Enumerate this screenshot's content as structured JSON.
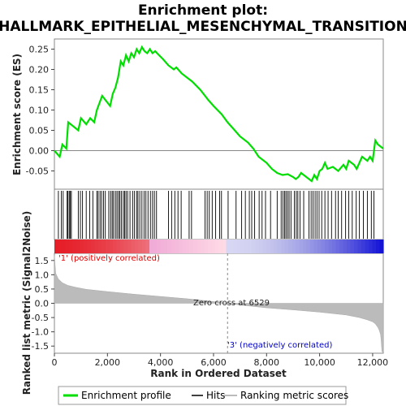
{
  "chart_data": {
    "type": "line",
    "title_line1": "Enrichment plot:",
    "title_line2": "HALLMARK_EPITHELIAL_MESENCHYMAL_TRANSITION",
    "es_ylabel": "Enrichment score (ES)",
    "metric_ylabel": "Ranked list metric (Signal2Noise)",
    "xlabel": "Rank in Ordered Dataset",
    "x_range": [
      0,
      12400
    ],
    "x_ticks": [
      0,
      2000,
      4000,
      6000,
      8000,
      10000,
      12000
    ],
    "x_tick_labels": [
      "0",
      "2,000",
      "4,000",
      "6,000",
      "8,000",
      "10,000",
      "12,000"
    ],
    "es_ylim": [
      -0.095,
      0.275
    ],
    "es_ticks": [
      -0.05,
      0.0,
      0.05,
      0.1,
      0.15,
      0.2,
      0.25
    ],
    "es_tick_labels": [
      "-0.05",
      "0.00",
      "0.05",
      "0.10",
      "0.15",
      "0.20",
      "0.25"
    ],
    "metric_ylim": [
      -1.75,
      1.75
    ],
    "metric_ticks": [
      -1.5,
      -1.0,
      -0.5,
      0.0,
      0.5,
      1.0,
      1.5
    ],
    "metric_tick_labels": [
      "-1.5",
      "-1.0",
      "-0.5",
      "0.0",
      "0.5",
      "1.0",
      "1.5"
    ],
    "colors": {
      "enrichment": "#00dd00",
      "hits": "#000000",
      "metric": "#bbbbbb",
      "positive_label": "#dd0000",
      "negative_label": "#0000cc",
      "zero_cross": "#888888"
    },
    "enrichment_profile": {
      "x": [
        0,
        200,
        300,
        450,
        520,
        900,
        1000,
        1200,
        1350,
        1500,
        1600,
        1800,
        2100,
        2200,
        2300,
        2400,
        2500,
        2600,
        2700,
        2800,
        2900,
        3000,
        3100,
        3200,
        3300,
        3400,
        3500,
        3600,
        3700,
        3800,
        3900,
        4100,
        4300,
        4500,
        4600,
        4800,
        5000,
        5200,
        5500,
        5800,
        6000,
        6300,
        6529,
        6800,
        7000,
        7300,
        7500,
        7700,
        8000,
        8200,
        8400,
        8600,
        8800,
        9000,
        9100,
        9200,
        9300,
        9500,
        9700,
        9800,
        9900,
        10000,
        10100,
        10200,
        10300,
        10500,
        10700,
        10900,
        11000,
        11100,
        11300,
        11400,
        11500,
        11600,
        11800,
        11900,
        12000,
        12100,
        12200,
        12400
      ],
      "y": [
        0.0,
        -0.015,
        0.015,
        0.005,
        0.07,
        0.05,
        0.08,
        0.065,
        0.08,
        0.07,
        0.1,
        0.135,
        0.11,
        0.14,
        0.155,
        0.18,
        0.22,
        0.21,
        0.235,
        0.22,
        0.24,
        0.23,
        0.25,
        0.24,
        0.255,
        0.245,
        0.24,
        0.25,
        0.24,
        0.245,
        0.238,
        0.225,
        0.21,
        0.2,
        0.205,
        0.19,
        0.18,
        0.17,
        0.15,
        0.125,
        0.11,
        0.09,
        0.07,
        0.05,
        0.035,
        0.02,
        0.005,
        -0.015,
        -0.03,
        -0.045,
        -0.055,
        -0.06,
        -0.058,
        -0.065,
        -0.07,
        -0.065,
        -0.055,
        -0.065,
        -0.075,
        -0.06,
        -0.07,
        -0.05,
        -0.045,
        -0.03,
        -0.045,
        -0.04,
        -0.05,
        -0.035,
        -0.045,
        -0.025,
        -0.035,
        -0.045,
        -0.03,
        -0.015,
        -0.025,
        -0.015,
        -0.025,
        0.025,
        0.015,
        0.005
      ],
      "name": "Enrichment profile"
    },
    "hits_x": [
      150,
      260,
      330,
      480,
      510,
      560,
      600,
      640,
      900,
      980,
      1060,
      1200,
      1330,
      1450,
      1600,
      1650,
      1720,
      1780,
      1850,
      1920,
      2050,
      2120,
      2180,
      2230,
      2300,
      2360,
      2420,
      2470,
      2530,
      2600,
      2650,
      2700,
      2760,
      2850,
      2950,
      3020,
      3100,
      3150,
      3220,
      3300,
      3380,
      3450,
      3530,
      3620,
      3700,
      3770,
      3850,
      4300,
      4420,
      4540,
      4660,
      4780,
      5080,
      5170,
      5680,
      5760,
      5840,
      5950,
      6080,
      6230,
      6300,
      6550,
      6850,
      7060,
      7200,
      7350,
      7440,
      7550,
      7720,
      7830,
      7960,
      8150,
      8400,
      8550,
      8620,
      8680,
      8730,
      8790,
      8850,
      8920,
      9050,
      9120,
      9180,
      9260,
      9400,
      9600,
      9680,
      9750,
      9830,
      9900,
      9980,
      10080,
      10200,
      10320,
      10450,
      10600,
      10700,
      10830,
      10980,
      11100,
      11230,
      11380,
      11500,
      11650,
      11800,
      11950,
      12050
    ],
    "metric_profile": {
      "x": [
        0,
        50,
        150,
        300,
        500,
        800,
        1200,
        2000,
        3000,
        4000,
        5000,
        6000,
        6529,
        7000,
        8000,
        9000,
        10000,
        11000,
        11500,
        11800,
        12000,
        12100,
        12200,
        12250,
        12300,
        12320,
        12350,
        12400
      ],
      "y": [
        1.68,
        1.05,
        0.85,
        0.72,
        0.63,
        0.56,
        0.49,
        0.41,
        0.32,
        0.24,
        0.16,
        0.06,
        0.0,
        -0.06,
        -0.16,
        -0.23,
        -0.31,
        -0.41,
        -0.5,
        -0.58,
        -0.65,
        -0.72,
        -0.85,
        -0.95,
        -1.1,
        -1.3,
        -1.7,
        -1.7
      ],
      "name": "Ranking metric scores"
    },
    "zero_cross": 6529,
    "zero_cross_label": "Zero cross at 6529",
    "positive_label": "'1' (positively correlated)",
    "negative_label": "'3' (negatively correlated)",
    "legend": [
      {
        "label": "Enrichment profile",
        "kind": "enrichment"
      },
      {
        "label": "Hits",
        "kind": "hits"
      },
      {
        "label": "Ranking metric scores",
        "kind": "metric"
      }
    ],
    "legend_position": "bottom",
    "grid": false
  }
}
